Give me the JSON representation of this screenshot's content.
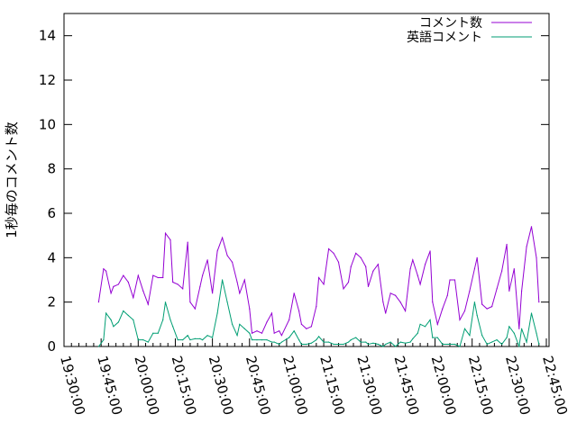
{
  "chart_data": {
    "type": "line",
    "title": "",
    "xlabel": "",
    "ylabel": "1秒毎のコメント数",
    "xlim": [
      "19:30:00",
      "22:45:00"
    ],
    "ylim": [
      0,
      15
    ],
    "xticks": [
      "19:30:00",
      "19:45:00",
      "20:00:00",
      "20:15:00",
      "20:30:00",
      "20:45:00",
      "21:00:00",
      "21:15:00",
      "21:30:00",
      "21:45:00",
      "22:00:00",
      "22:15:00",
      "22:30:00",
      "22:45:00"
    ],
    "yticks": [
      0,
      2,
      4,
      6,
      8,
      10,
      12,
      14
    ],
    "grid": false,
    "legend_position": "top-right",
    "x": [
      "19:44",
      "19:46",
      "19:47",
      "19:49",
      "19:50",
      "19:52",
      "19:54",
      "19:56",
      "19:58",
      "20:00",
      "20:02",
      "20:04",
      "20:06",
      "20:08",
      "20:10",
      "20:11",
      "20:13",
      "20:14",
      "20:16",
      "20:18",
      "20:20",
      "20:21",
      "20:23",
      "20:25",
      "20:26",
      "20:28",
      "20:30",
      "20:32",
      "20:34",
      "20:36",
      "20:38",
      "20:40",
      "20:41",
      "20:43",
      "20:45",
      "20:46",
      "20:48",
      "20:50",
      "20:52",
      "20:54",
      "20:55",
      "20:57",
      "20:58",
      "21:01",
      "21:03",
      "21:05",
      "21:06",
      "21:08",
      "21:10",
      "21:12",
      "21:13",
      "21:15",
      "21:17",
      "21:19",
      "21:21",
      "21:23",
      "21:25",
      "21:26",
      "21:28",
      "21:30",
      "21:32",
      "21:33",
      "21:35",
      "21:37",
      "21:39",
      "21:40",
      "21:42",
      "21:44",
      "21:46",
      "21:48",
      "21:50",
      "21:51",
      "21:53",
      "21:54",
      "21:56",
      "21:58",
      "21:59",
      "22:01",
      "22:03",
      "22:05",
      "22:06",
      "22:08",
      "22:10",
      "22:12",
      "22:14",
      "22:16",
      "22:17",
      "22:19",
      "22:21",
      "22:23",
      "22:25",
      "22:27",
      "22:29",
      "22:30",
      "22:32",
      "22:34",
      "22:35",
      "22:37",
      "22:39",
      "22:41",
      "22:42"
    ],
    "series": [
      {
        "name": "コメント数",
        "color": "#9400d3",
        "values": [
          2.0,
          3.5,
          3.4,
          2.4,
          2.7,
          2.8,
          3.2,
          2.9,
          2.2,
          3.2,
          2.5,
          1.9,
          3.2,
          3.1,
          3.1,
          5.1,
          4.8,
          2.9,
          2.8,
          2.6,
          4.7,
          2.0,
          1.7,
          2.7,
          3.2,
          3.9,
          2.4,
          4.3,
          4.9,
          4.1,
          3.8,
          2.9,
          2.4,
          3.0,
          1.7,
          0.6,
          0.7,
          0.6,
          1.1,
          1.5,
          0.6,
          0.7,
          0.5,
          1.2,
          2.4,
          1.6,
          1.0,
          0.8,
          0.9,
          1.8,
          3.1,
          2.8,
          4.4,
          4.2,
          3.8,
          2.6,
          2.9,
          3.6,
          4.2,
          4.0,
          3.6,
          2.7,
          3.4,
          3.7,
          2.0,
          1.5,
          2.4,
          2.3,
          2.0,
          1.6,
          3.5,
          3.9,
          3.2,
          2.8,
          3.7,
          4.3,
          2.0,
          1.0,
          1.7,
          2.3,
          3.0,
          3.0,
          1.2,
          1.6,
          2.5,
          3.5,
          4.0,
          1.9,
          1.7,
          1.8,
          2.6,
          3.4,
          4.6,
          2.5,
          3.5,
          0.8,
          2.5,
          4.5,
          5.4,
          4.0,
          2.0
        ]
      },
      {
        "name": "英語コメント",
        "color": "#009e73",
        "values": [
          0.0,
          0.3,
          1.5,
          1.2,
          0.9,
          1.1,
          1.6,
          1.4,
          1.2,
          0.3,
          0.3,
          0.2,
          0.6,
          0.6,
          1.2,
          2.0,
          1.2,
          0.9,
          0.3,
          0.3,
          0.5,
          0.3,
          0.35,
          0.35,
          0.3,
          0.5,
          0.4,
          1.5,
          3.0,
          2.0,
          1.0,
          0.5,
          1.0,
          0.8,
          0.6,
          0.3,
          0.3,
          0.3,
          0.3,
          0.2,
          0.2,
          0.1,
          0.2,
          0.4,
          0.7,
          0.3,
          0.1,
          0.1,
          0.15,
          0.3,
          0.45,
          0.2,
          0.2,
          0.1,
          0.1,
          0.1,
          0.2,
          0.3,
          0.4,
          0.2,
          0.2,
          0.1,
          0.15,
          0.1,
          0.0,
          0.1,
          0.2,
          0.0,
          0.2,
          0.15,
          0.2,
          0.35,
          0.6,
          1.0,
          0.9,
          1.2,
          0.4,
          0.4,
          0.1,
          0.1,
          0.1,
          0.1,
          0.0,
          0.8,
          0.5,
          2.0,
          1.4,
          0.5,
          0.1,
          0.2,
          0.3,
          0.1,
          0.4,
          0.9,
          0.6,
          0.0,
          0.8,
          0.2,
          1.5,
          0.6,
          0.1
        ]
      }
    ]
  }
}
